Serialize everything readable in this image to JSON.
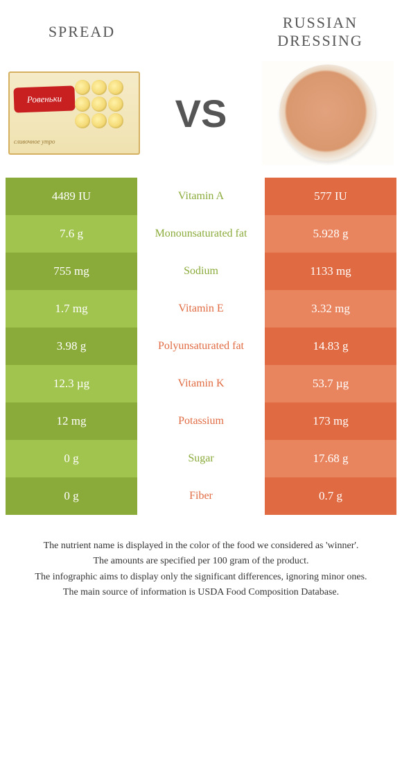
{
  "header": {
    "left": "SPREAD",
    "right": "RUSSIAN DRESSING",
    "product_left_label": "Ровеньки",
    "product_left_sub": "сливочное утро",
    "vs": "VS"
  },
  "colors": {
    "green_dark": "#8aab3a",
    "green_light": "#a1c44f",
    "orange_dark": "#e06a41",
    "orange_light": "#e8855f",
    "text_green": "#8aab3a",
    "text_orange": "#e06a41",
    "body_text": "#333333"
  },
  "rows": [
    {
      "left": "4489 IU",
      "label": "Vitamin A",
      "right": "577 IU",
      "winner": "left"
    },
    {
      "left": "7.6 g",
      "label": "Monounsaturated fat",
      "right": "5.928 g",
      "winner": "left"
    },
    {
      "left": "755 mg",
      "label": "Sodium",
      "right": "1133 mg",
      "winner": "left"
    },
    {
      "left": "1.7 mg",
      "label": "Vitamin E",
      "right": "3.32 mg",
      "winner": "right"
    },
    {
      "left": "3.98 g",
      "label": "Polyunsaturated fat",
      "right": "14.83 g",
      "winner": "right"
    },
    {
      "left": "12.3 µg",
      "label": "Vitamin K",
      "right": "53.7 µg",
      "winner": "right"
    },
    {
      "left": "12 mg",
      "label": "Potassium",
      "right": "173 mg",
      "winner": "right"
    },
    {
      "left": "0 g",
      "label": "Sugar",
      "right": "17.68 g",
      "winner": "left"
    },
    {
      "left": "0 g",
      "label": "Fiber",
      "right": "0.7 g",
      "winner": "right"
    }
  ],
  "footer": {
    "l1": "The nutrient name is displayed in the color of the food we considered as 'winner'.",
    "l2": "The amounts are specified per 100 gram of the product.",
    "l3": "The infographic aims to display only the significant differences, ignoring minor ones.",
    "l4": "The main source of information is USDA Food Composition Database."
  }
}
